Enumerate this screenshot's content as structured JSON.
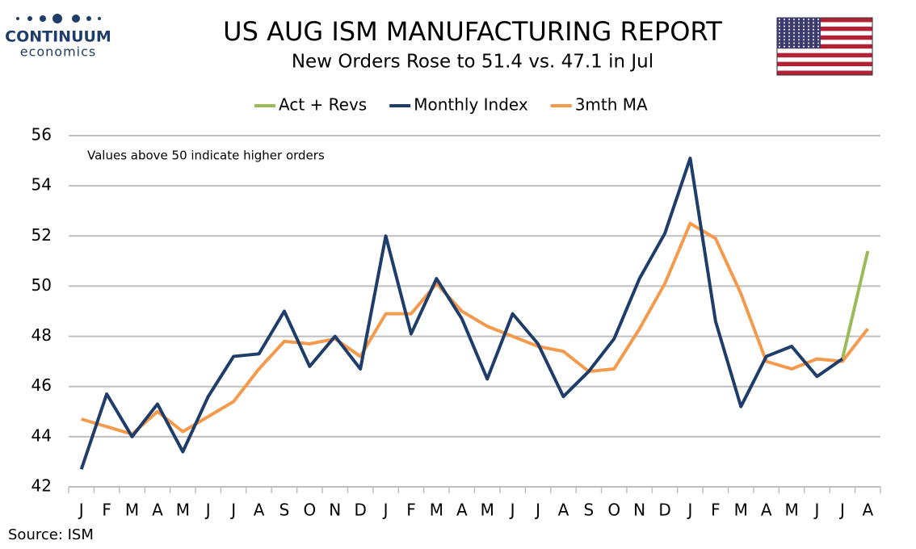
{
  "logo": {
    "name": "CONTINUUM",
    "tagline": "economics"
  },
  "chart_data": {
    "type": "line",
    "title": "US AUG ISM MANUFACTURING REPORT",
    "subtitle": "New Orders Rose to 51.4 vs. 47.1 in Jul",
    "annotation": "Values above 50 indicate higher orders",
    "source": "Source: ISM",
    "categories": [
      "J",
      "F",
      "M",
      "A",
      "M",
      "J",
      "J",
      "A",
      "S",
      "O",
      "N",
      "D",
      "J",
      "F",
      "M",
      "A",
      "M",
      "J",
      "J",
      "A",
      "S",
      "O",
      "N",
      "D",
      "J",
      "F",
      "M",
      "A",
      "M",
      "J",
      "J",
      "A"
    ],
    "series": [
      {
        "name": "Act + Revs",
        "color": "#9bbb59",
        "values": [
          null,
          null,
          null,
          null,
          null,
          null,
          null,
          null,
          null,
          null,
          null,
          null,
          null,
          null,
          null,
          null,
          null,
          null,
          null,
          null,
          null,
          null,
          null,
          null,
          null,
          null,
          null,
          null,
          null,
          null,
          47.1,
          51.4
        ]
      },
      {
        "name": "Monthly Index",
        "color": "#1f3d6b",
        "values": [
          42.7,
          45.7,
          44.0,
          45.3,
          43.4,
          45.6,
          47.2,
          47.3,
          49.0,
          46.8,
          48.0,
          46.7,
          52.0,
          48.1,
          50.3,
          48.7,
          46.3,
          48.9,
          47.7,
          45.6,
          46.6,
          47.9,
          50.3,
          52.1,
          55.1,
          48.6,
          45.2,
          47.2,
          47.6,
          46.4,
          47.1,
          null
        ]
      },
      {
        "name": "3mth MA",
        "color": "#f39a4c",
        "values": [
          44.7,
          44.4,
          44.1,
          45.0,
          44.2,
          44.8,
          45.4,
          46.7,
          47.8,
          47.7,
          47.9,
          47.2,
          48.9,
          48.9,
          50.1,
          49.0,
          48.4,
          48.0,
          47.6,
          47.4,
          46.6,
          46.7,
          48.3,
          50.1,
          52.5,
          51.9,
          49.7,
          47.0,
          46.7,
          47.1,
          47.0,
          48.3
        ]
      }
    ],
    "ylim": [
      42,
      56
    ],
    "yticks": [
      42,
      44,
      46,
      48,
      50,
      52,
      54,
      56
    ],
    "grid": true,
    "legend": "top"
  }
}
